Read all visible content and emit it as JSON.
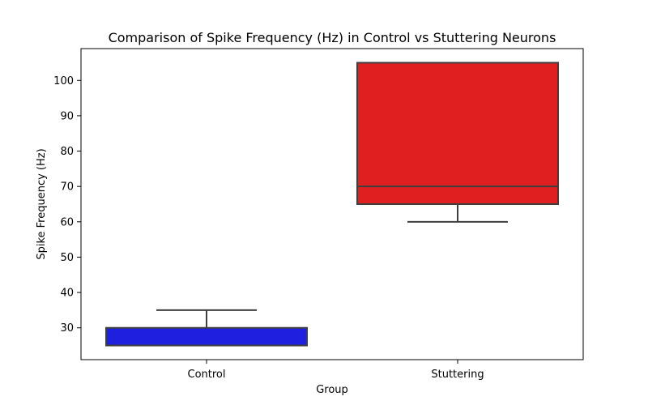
{
  "chart_data": {
    "type": "box",
    "title": "Comparison of Spike Frequency (Hz) in Control vs Stuttering Neurons",
    "xlabel": "Group",
    "ylabel": "Spike Frequency (Hz)",
    "ylim": [
      21,
      109
    ],
    "yticks": [
      30,
      40,
      50,
      60,
      70,
      80,
      90,
      100
    ],
    "grid": false,
    "categories": [
      "Control",
      "Stuttering"
    ],
    "boxes": [
      {
        "category": "Control",
        "whisker_low": 25,
        "q1": 25,
        "median": 25,
        "q3": 30,
        "whisker_high": 35,
        "color": "#1f1fe0"
      },
      {
        "category": "Stuttering",
        "whisker_low": 60,
        "q1": 65,
        "median": 70,
        "q3": 105,
        "whisker_high": 105,
        "color": "#e02020"
      }
    ]
  }
}
